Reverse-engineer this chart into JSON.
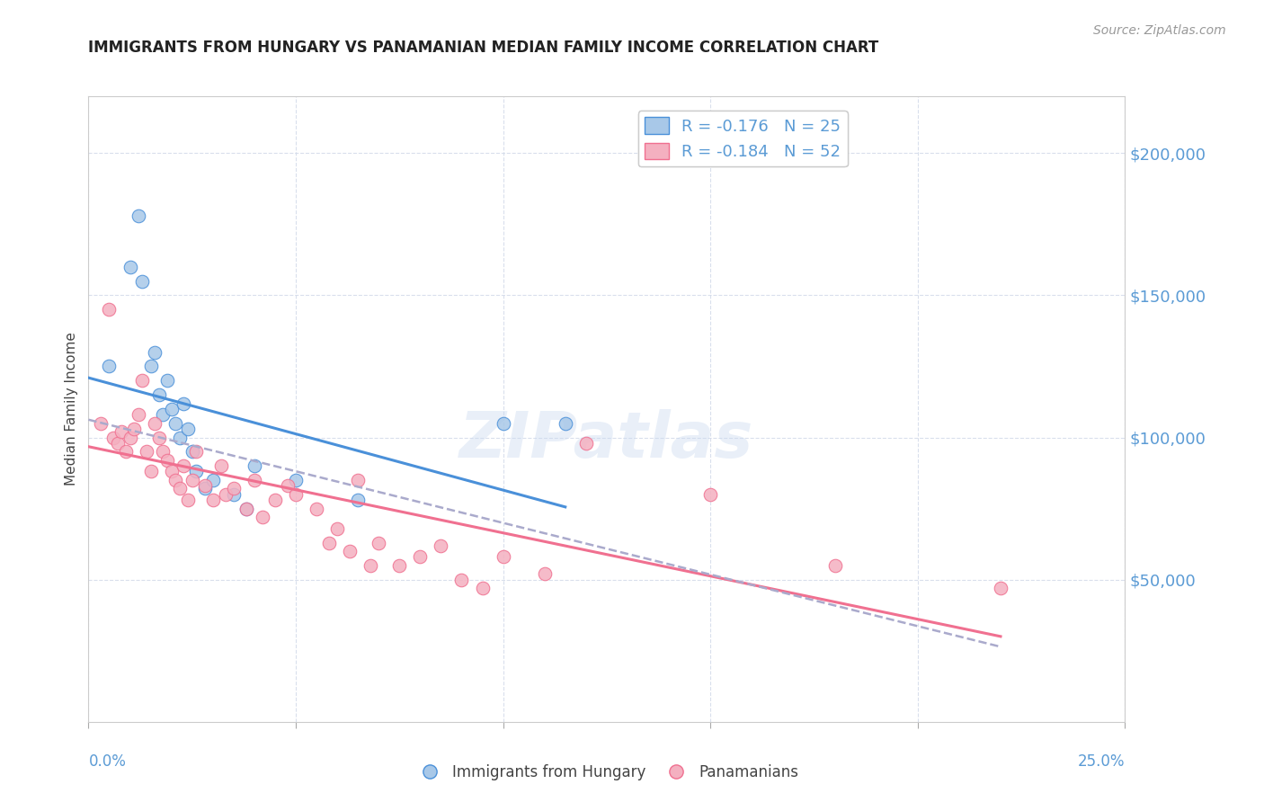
{
  "title": "IMMIGRANTS FROM HUNGARY VS PANAMANIAN MEDIAN FAMILY INCOME CORRELATION CHART",
  "source": "Source: ZipAtlas.com",
  "ylabel": "Median Family Income",
  "xlim": [
    0.0,
    0.25
  ],
  "ylim": [
    0,
    220000
  ],
  "yticks": [
    50000,
    100000,
    150000,
    200000
  ],
  "ytick_labels": [
    "$50,000",
    "$100,000",
    "$150,000",
    "$200,000"
  ],
  "watermark": "ZIPatlas",
  "blue_color": "#a8c8e8",
  "pink_color": "#f4b0c0",
  "blue_line_color": "#4a90d9",
  "pink_line_color": "#f07090",
  "dashed_line_color": "#aaaacc",
  "hungary_x": [
    0.005,
    0.01,
    0.012,
    0.013,
    0.015,
    0.016,
    0.017,
    0.018,
    0.019,
    0.02,
    0.021,
    0.022,
    0.023,
    0.024,
    0.025,
    0.026,
    0.028,
    0.03,
    0.035,
    0.038,
    0.04,
    0.05,
    0.065,
    0.1,
    0.115
  ],
  "hungary_y": [
    125000,
    160000,
    178000,
    155000,
    125000,
    130000,
    115000,
    108000,
    120000,
    110000,
    105000,
    100000,
    112000,
    103000,
    95000,
    88000,
    82000,
    85000,
    80000,
    75000,
    90000,
    85000,
    78000,
    105000,
    105000
  ],
  "panama_x": [
    0.003,
    0.005,
    0.006,
    0.007,
    0.008,
    0.009,
    0.01,
    0.011,
    0.012,
    0.013,
    0.014,
    0.015,
    0.016,
    0.017,
    0.018,
    0.019,
    0.02,
    0.021,
    0.022,
    0.023,
    0.024,
    0.025,
    0.026,
    0.028,
    0.03,
    0.032,
    0.033,
    0.035,
    0.038,
    0.04,
    0.042,
    0.045,
    0.048,
    0.05,
    0.055,
    0.058,
    0.06,
    0.063,
    0.065,
    0.068,
    0.07,
    0.075,
    0.08,
    0.085,
    0.09,
    0.095,
    0.1,
    0.11,
    0.12,
    0.15,
    0.18,
    0.22
  ],
  "panama_y": [
    105000,
    145000,
    100000,
    98000,
    102000,
    95000,
    100000,
    103000,
    108000,
    120000,
    95000,
    88000,
    105000,
    100000,
    95000,
    92000,
    88000,
    85000,
    82000,
    90000,
    78000,
    85000,
    95000,
    83000,
    78000,
    90000,
    80000,
    82000,
    75000,
    85000,
    72000,
    78000,
    83000,
    80000,
    75000,
    63000,
    68000,
    60000,
    85000,
    55000,
    63000,
    55000,
    58000,
    62000,
    50000,
    47000,
    58000,
    52000,
    98000,
    80000,
    55000,
    47000
  ]
}
